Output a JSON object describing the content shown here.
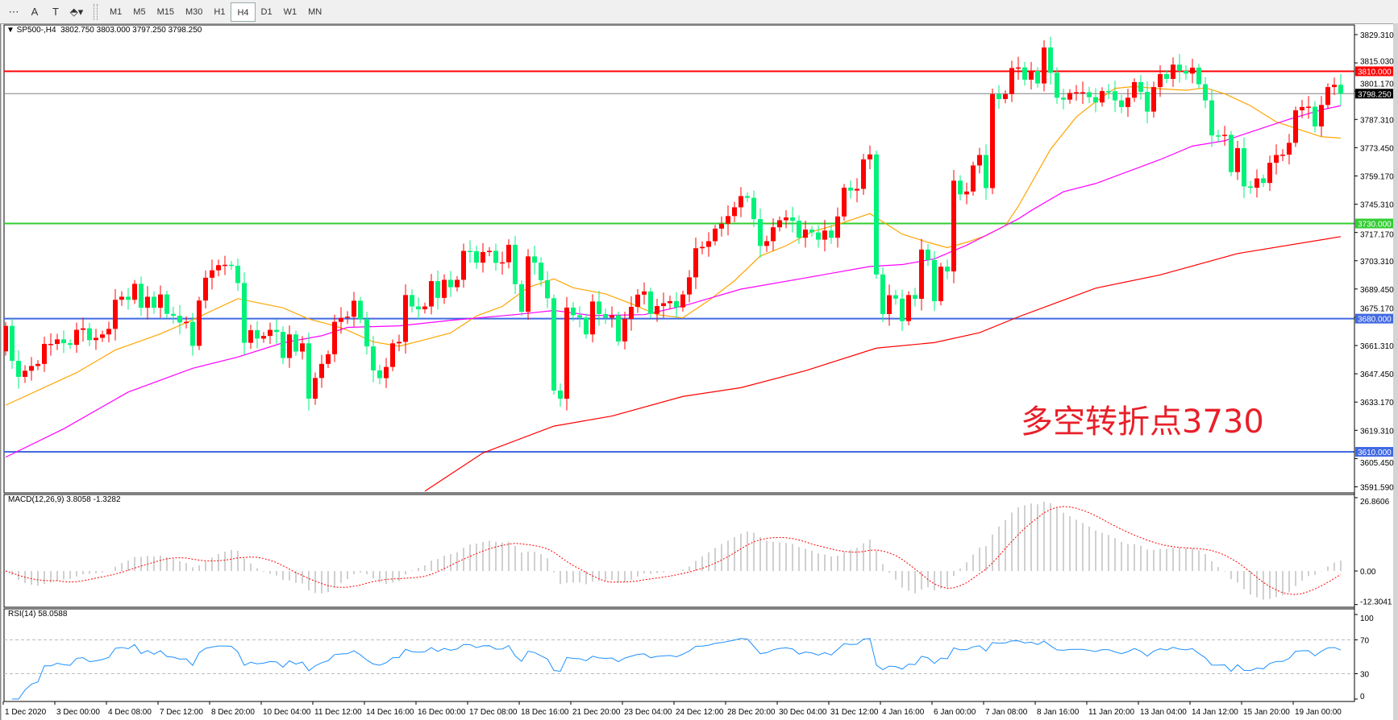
{
  "toolbar": {
    "tools": [
      {
        "name": "grid-icon",
        "glyph": "⋯"
      },
      {
        "name": "text-icon",
        "glyph": "A"
      },
      {
        "name": "text-label-icon",
        "glyph": "T"
      },
      {
        "name": "arrows-icon",
        "glyph": "⬘▾"
      }
    ],
    "timeframes": [
      "M1",
      "M5",
      "M15",
      "M30",
      "H1",
      "H4",
      "D1",
      "W1",
      "MN"
    ],
    "active_timeframe": "H4"
  },
  "header": {
    "symbol": "▼ SP500-,H4",
    "ohlc": "3802.750 3803.000 3797.250 3798.250"
  },
  "annotation": "多空转折点3730",
  "colors": {
    "bull": "#ff0000",
    "bear": "#00f27a",
    "ma_fast": "#ffa500",
    "ma_mid": "#ff00ff",
    "ma_slow": "#ff0000",
    "hist": "#c0c0c0",
    "signal": "#ff0000",
    "rsi": "#1e90ff"
  },
  "chart_data": [
    {
      "type": "candlestick",
      "title": "SP500-,H4",
      "price_axis": {
        "ylim": [
          3591.59,
          3829.31
        ],
        "tick_labels": [
          "3829.310",
          "3815.030",
          "3801.170",
          "3787.310",
          "3773.450",
          "3759.170",
          "3745.310",
          "3717.170",
          "3703.310",
          "3689.450",
          "3675.170",
          "3661.310",
          "3647.450",
          "3633.170",
          "3619.310",
          "3605.450",
          "3591.590"
        ]
      },
      "time_axis": {
        "tick_labels": [
          "1 Dec 2020",
          "3 Dec 00:00",
          "4 Dec 08:00",
          "7 Dec 12:00",
          "8 Dec 20:00",
          "10 Dec 04:00",
          "11 Dec 12:00",
          "14 Dec 16:00",
          "16 Dec 00:00",
          "17 Dec 08:00",
          "18 Dec 16:00",
          "21 Dec 20:00",
          "23 Dec 04:00",
          "24 Dec 12:00",
          "28 Dec 20:00",
          "30 Dec 04:00",
          "31 Dec 12:00",
          "4 Jan 16:00",
          "6 Jan 00:00",
          "7 Jan 08:00",
          "8 Jan 16:00",
          "11 Jan 20:00",
          "13 Jan 04:00",
          "14 Jan 12:00",
          "15 Jan 20:00",
          "19 Jan 00:00"
        ],
        "bars_per_label": 8
      },
      "levels": [
        {
          "price": 3810.0,
          "label": "3810.000",
          "color": "#ff0000"
        },
        {
          "price": 3730.0,
          "label": "3730.000",
          "color": "#32cd32"
        },
        {
          "price": 3680.0,
          "label": "3680.000",
          "color": "#4169e1"
        },
        {
          "price": 3610.0,
          "label": "3610.000",
          "color": "#4169e1"
        }
      ],
      "current_price": {
        "price": 3798.25,
        "label": "3798.250"
      },
      "first_open": 3662.8,
      "close": [
        3676.2,
        3657.8,
        3649.4,
        3652.6,
        3655.1,
        3656.2,
        3666.7,
        3666.7,
        3669.1,
        3667.1,
        3666.2,
        3674.1,
        3674.9,
        3668.7,
        3669.9,
        3671.7,
        3674.6,
        3689.9,
        3691.5,
        3689.9,
        3698.3,
        3685.7,
        3691.5,
        3685.7,
        3692.7,
        3682.5,
        3681.5,
        3678.0,
        3678.3,
        3665.7,
        3689.5,
        3701.5,
        3705.4,
        3708.1,
        3708.3,
        3707.8,
        3698.7,
        3667.3,
        3673.9,
        3669.5,
        3670.9,
        3674.1,
        3673.0,
        3659.3,
        3671.7,
        3662.7,
        3667.0,
        3637.9,
        3648.8,
        3656.2,
        3661.3,
        3678.3,
        3680.4,
        3681.0,
        3689.4,
        3679.8,
        3665.4,
        3652.8,
        3648.7,
        3654.6,
        3667.0,
        3667.8,
        3692.4,
        3686.4,
        3684.9,
        3686.4,
        3699.7,
        3690.9,
        3700.4,
        3696.5,
        3700.4,
        3715.6,
        3715.4,
        3709.4,
        3715.0,
        3715.6,
        3709.3,
        3709.6,
        3718.8,
        3698.1,
        3683.6,
        3712.7,
        3709.4,
        3700.2,
        3690.7,
        3642.2,
        3637.9,
        3685.8,
        3681.8,
        3680.6,
        3671.7,
        3689.0,
        3682.4,
        3680.5,
        3681.7,
        3668.0,
        3679.8,
        3686.2,
        3692.6,
        3694.3,
        3682.5,
        3686.6,
        3688.1,
        3689.2,
        3685.9,
        3692.7,
        3701.7,
        3717.0,
        3717.7,
        3720.7,
        3727.3,
        3729.9,
        3733.9,
        3738.5,
        3744.4,
        3743.5,
        3732.3,
        3718.2,
        3720.7,
        3728.0,
        3731.7,
        3733.2,
        3731.4,
        3722.5,
        3726.8,
        3725.3,
        3721.5,
        3726.3,
        3722.5,
        3733.7,
        3748.8,
        3747.3,
        3748.2,
        3763.7,
        3766.3,
        3703.2,
        3682.4,
        3692.3,
        3690.5,
        3678.7,
        3692.4,
        3690.4,
        3716.3,
        3710.8,
        3689.2,
        3707.3,
        3704.8,
        3752.5,
        3745.3,
        3746.8,
        3760.5,
        3766.0,
        3748.6,
        3798.0,
        3795.4,
        3798.0,
        3811.7,
        3812.0,
        3805.6,
        3810.2,
        3803.6,
        3822.5,
        3809.2,
        3796.1,
        3795.1,
        3798.6,
        3799.0,
        3799.0,
        3796.4,
        3793.6,
        3799.6,
        3799.5,
        3794.7,
        3791.2,
        3796.1,
        3804.3,
        3799.2,
        3788.8,
        3801.7,
        3808.5,
        3806.0,
        3813.5,
        3810.2,
        3808.8,
        3811.9,
        3803.2,
        3794.7,
        3776.3,
        3776.0,
        3776.6,
        3757.0,
        3769.6,
        3749.5,
        3748.8,
        3753.7,
        3751.3,
        3761.9,
        3766.0,
        3766.2,
        3772.4,
        3789.5,
        3791.2,
        3791.4,
        3781.0,
        3792.3,
        3801.7,
        3802.9,
        3798.25
      ],
      "moving_averages": [
        {
          "role": "fast",
          "points": [
            [
              0,
              3634.5
            ],
            [
              11,
              3651.6
            ],
            [
              17,
              3663.5
            ],
            [
              24,
              3672
            ],
            [
              29,
              3679.4
            ],
            [
              36,
              3690.5
            ],
            [
              43,
              3685.7
            ],
            [
              47,
              3679.8
            ],
            [
              51,
              3676.2
            ],
            [
              53,
              3673.9
            ],
            [
              57,
              3667.8
            ],
            [
              61,
              3665.5
            ],
            [
              65,
              3668.9
            ],
            [
              69,
              3672.5
            ],
            [
              73,
              3681.4
            ],
            [
              77,
              3686.4
            ],
            [
              81,
              3696.4
            ],
            [
              85,
              3700.9
            ],
            [
              88,
              3696.2
            ],
            [
              93,
              3693
            ],
            [
              97,
              3687.8
            ],
            [
              101,
              3682.1
            ],
            [
              105,
              3680.4
            ],
            [
              109,
              3689.5
            ],
            [
              113,
              3699.9
            ],
            [
              117,
              3712.9
            ],
            [
              121,
              3718.3
            ],
            [
              125,
              3725.7
            ],
            [
              129,
              3729.5
            ],
            [
              134,
              3735.2
            ],
            [
              139,
              3724.4
            ],
            [
              143,
              3720.1
            ],
            [
              146,
              3717.3
            ],
            [
              149,
              3720.1
            ],
            [
              152,
              3723.6
            ],
            [
              155,
              3728.9
            ],
            [
              157,
              3739
            ],
            [
              162,
              3769
            ],
            [
              166,
              3786
            ],
            [
              169,
              3794
            ],
            [
              172,
              3801
            ],
            [
              175,
              3802
            ],
            [
              179,
              3800.8
            ],
            [
              183,
              3800
            ],
            [
              186,
              3801.3
            ],
            [
              189,
              3798.2
            ],
            [
              193,
              3791.9
            ],
            [
              197,
              3783.4
            ],
            [
              201,
              3778.9
            ],
            [
              204,
              3775.6
            ],
            [
              207,
              3774.9
            ]
          ]
        },
        {
          "role": "mid",
          "points": [
            [
              0,
              3607.2
            ],
            [
              9,
              3622.1
            ],
            [
              19,
              3641.4
            ],
            [
              29,
              3653.9
            ],
            [
              36,
              3659.8
            ],
            [
              43,
              3667.3
            ],
            [
              49,
              3671
            ],
            [
              53,
              3675.4
            ],
            [
              61,
              3676.2
            ],
            [
              69,
              3679.1
            ],
            [
              79,
              3682.1
            ],
            [
              85,
              3684.3
            ],
            [
              91,
              3681.6
            ],
            [
              99,
              3682.1
            ],
            [
              105,
              3686.6
            ],
            [
              114,
              3695.5
            ],
            [
              124,
              3701.4
            ],
            [
              134,
              3707.4
            ],
            [
              139,
              3708.4
            ],
            [
              144,
              3711.4
            ],
            [
              149,
              3718.6
            ],
            [
              154,
              3727.2
            ],
            [
              157,
              3732.4
            ],
            [
              159,
              3736.8
            ],
            [
              164,
              3746.7
            ],
            [
              169,
              3751
            ],
            [
              174,
              3757.3
            ],
            [
              179,
              3763.6
            ],
            [
              184,
              3770.7
            ],
            [
              189,
              3773.5
            ],
            [
              194,
              3779.2
            ],
            [
              199,
              3784.8
            ],
            [
              204,
              3789.7
            ],
            [
              207,
              3791.9
            ]
          ]
        },
        {
          "role": "slow",
          "points": [
            [
              65,
              3589.3
            ],
            [
              74,
              3609.4
            ],
            [
              85,
              3623.5
            ],
            [
              94,
              3628.8
            ],
            [
              105,
              3639.1
            ],
            [
              114,
              3643.7
            ],
            [
              124,
              3652.6
            ],
            [
              135,
              3664.5
            ],
            [
              144,
              3667.4
            ],
            [
              151,
              3672.6
            ],
            [
              157,
              3680.9
            ],
            [
              169,
              3696
            ],
            [
              179,
              3703
            ],
            [
              191,
              3714.2
            ],
            [
              207,
              3723.1
            ]
          ]
        }
      ]
    },
    {
      "type": "bar",
      "title": "MACD(12,26,9) 3.8058 -1.3282",
      "params": [
        12,
        26,
        9
      ],
      "ylim": [
        -12.3041,
        26.8606
      ],
      "tick_labels": [
        "26.8606",
        "0.00",
        "-12.3041"
      ]
    },
    {
      "type": "line",
      "title": "RSI(14) 58.0588",
      "period": 14,
      "ylim": [
        0,
        100
      ],
      "levels": [
        30,
        70
      ],
      "tick_labels": [
        "100",
        "70",
        "30",
        "0"
      ]
    }
  ]
}
